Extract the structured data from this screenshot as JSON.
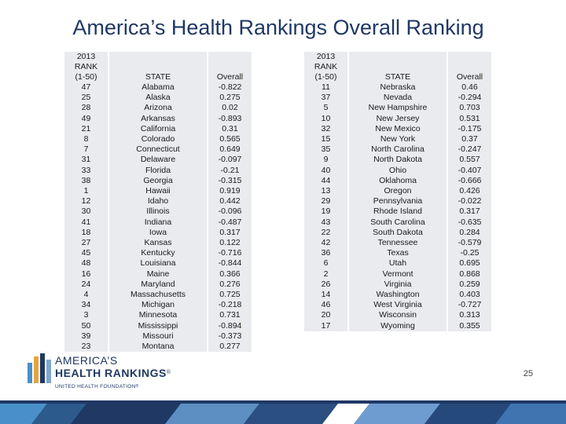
{
  "title": "America’s Health Rankings Overall Ranking",
  "header": {
    "rank_line1": "2013",
    "rank_line2": "RANK",
    "rank_line3": "(1-50)",
    "state": "STATE",
    "overall": "Overall"
  },
  "left_rows": [
    {
      "rank": "47",
      "state": "Alabama",
      "overall": "-0.822"
    },
    {
      "rank": "25",
      "state": "Alaska",
      "overall": "0.275"
    },
    {
      "rank": "28",
      "state": "Arizona",
      "overall": "0.02"
    },
    {
      "rank": "49",
      "state": "Arkansas",
      "overall": "-0.893"
    },
    {
      "rank": "21",
      "state": "California",
      "overall": "0.31"
    },
    {
      "rank": "8",
      "state": "Colorado",
      "overall": "0.565"
    },
    {
      "rank": "7",
      "state": "Connecticut",
      "overall": "0.649"
    },
    {
      "rank": "31",
      "state": "Delaware",
      "overall": "-0.097"
    },
    {
      "rank": "33",
      "state": "Florida",
      "overall": "-0.21"
    },
    {
      "rank": "38",
      "state": "Georgia",
      "overall": "-0.315"
    },
    {
      "rank": "1",
      "state": "Hawaii",
      "overall": "0.919"
    },
    {
      "rank": "12",
      "state": "Idaho",
      "overall": "0.442"
    },
    {
      "rank": "30",
      "state": "Illinois",
      "overall": "-0.096"
    },
    {
      "rank": "41",
      "state": "Indiana",
      "overall": "-0.487"
    },
    {
      "rank": "18",
      "state": "Iowa",
      "overall": "0.317"
    },
    {
      "rank": "27",
      "state": "Kansas",
      "overall": "0.122"
    },
    {
      "rank": "45",
      "state": "Kentucky",
      "overall": "-0.716"
    },
    {
      "rank": "48",
      "state": "Louisiana",
      "overall": "-0.844"
    },
    {
      "rank": "16",
      "state": "Maine",
      "overall": "0.366"
    },
    {
      "rank": "24",
      "state": "Maryland",
      "overall": "0.276"
    },
    {
      "rank": "4",
      "state": "Massachusetts",
      "overall": "0.725"
    },
    {
      "rank": "34",
      "state": "Michigan",
      "overall": "-0.218"
    },
    {
      "rank": "3",
      "state": "Minnesota",
      "overall": "0.731"
    },
    {
      "rank": "50",
      "state": "Mississippi",
      "overall": "-0.894"
    },
    {
      "rank": "39",
      "state": "Missouri",
      "overall": "-0.373"
    },
    {
      "rank": "23",
      "state": "Montana",
      "overall": "0.277"
    }
  ],
  "right_rows": [
    {
      "rank": "11",
      "state": "Nebraska",
      "overall": "0.46"
    },
    {
      "rank": "37",
      "state": "Nevada",
      "overall": "-0.294"
    },
    {
      "rank": "5",
      "state": "New Hampshire",
      "overall": "0.703"
    },
    {
      "rank": "10",
      "state": "New Jersey",
      "overall": "0.531"
    },
    {
      "rank": "32",
      "state": "New Mexico",
      "overall": "-0.175"
    },
    {
      "rank": "15",
      "state": "New York",
      "overall": "0.37"
    },
    {
      "rank": "35",
      "state": "North Carolina",
      "overall": "-0.247"
    },
    {
      "rank": "9",
      "state": "North Dakota",
      "overall": "0.557"
    },
    {
      "rank": "40",
      "state": "Ohio",
      "overall": "-0.407"
    },
    {
      "rank": "44",
      "state": "Oklahoma",
      "overall": "-0.666"
    },
    {
      "rank": "13",
      "state": "Oregon",
      "overall": "0.426"
    },
    {
      "rank": "29",
      "state": "Pennsylvania",
      "overall": "-0.022"
    },
    {
      "rank": "19",
      "state": "Rhode Island",
      "overall": "0.317"
    },
    {
      "rank": "43",
      "state": "South Carolina",
      "overall": "-0.635"
    },
    {
      "rank": "22",
      "state": "South Dakota",
      "overall": "0.284"
    },
    {
      "rank": "42",
      "state": "Tennessee",
      "overall": "-0.579"
    },
    {
      "rank": "36",
      "state": "Texas",
      "overall": "-0.25"
    },
    {
      "rank": "6",
      "state": "Utah",
      "overall": "0.695"
    },
    {
      "rank": "2",
      "state": "Vermont",
      "overall": "0.868"
    },
    {
      "rank": "26",
      "state": "Virginia",
      "overall": "0.259"
    },
    {
      "rank": "14",
      "state": "Washington",
      "overall": "0.403"
    },
    {
      "rank": "46",
      "state": "West Virginia",
      "overall": "-0.727"
    },
    {
      "rank": "20",
      "state": "Wisconsin",
      "overall": "0.313"
    },
    {
      "rank": "17",
      "state": "Wyoming",
      "overall": "0.355"
    }
  ],
  "logo": {
    "line1": "AMERICA’S",
    "line2": "HEALTH RANKINGS",
    "reg": "®",
    "line3": "UNITED HEALTH FOUNDATION",
    "reg3": "®",
    "icon": "bar-chart-logo-icon"
  },
  "page_number": "25",
  "colors": {
    "title": "#1f3864",
    "cell": "#e9ebef",
    "logo_blue": "#1f3864",
    "logo_orange": "#e8a33d",
    "logo_light_blue": "#4a90c8"
  }
}
